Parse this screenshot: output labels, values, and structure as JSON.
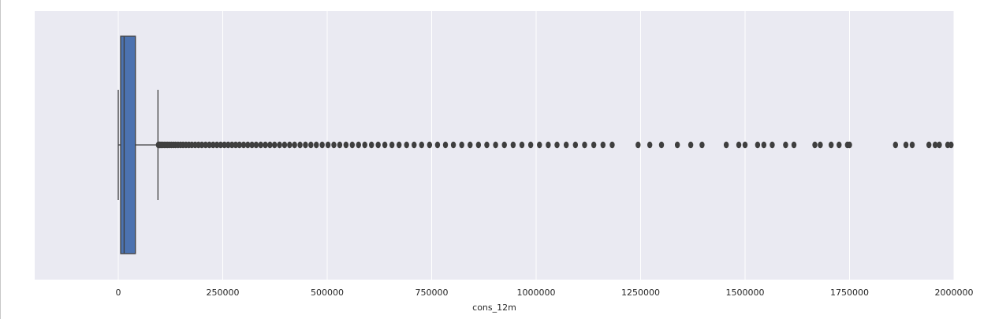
{
  "chart_data": {
    "type": "box",
    "orientation": "horizontal",
    "xlabel": "cons_12m",
    "xlim": [
      -200000,
      2000000
    ],
    "xticks": [
      0,
      250000,
      500000,
      750000,
      1000000,
      1250000,
      1500000,
      1750000,
      2000000
    ],
    "xtick_labels": [
      "0",
      "250000",
      "500000",
      "750000",
      "1000000",
      "1250000",
      "1500000",
      "1750000",
      "2000000"
    ],
    "grid": true,
    "box": {
      "whisker_low": 0,
      "q1": 5700,
      "median": 14000,
      "q3": 41000,
      "whisker_high": 95000
    },
    "outliers": [
      96000,
      98000,
      100000,
      103000,
      106000,
      110000,
      114000,
      118000,
      122000,
      127000,
      132000,
      137000,
      143000,
      149000,
      155000,
      162000,
      169000,
      176000,
      184000,
      192000,
      200000,
      209000,
      218000,
      227000,
      236000,
      245000,
      254000,
      263000,
      272000,
      281000,
      290000,
      300000,
      310000,
      320000,
      330000,
      341000,
      352000,
      363000,
      374000,
      386000,
      398000,
      410000,
      422000,
      435000,
      448000,
      461000,
      474000,
      488000,
      502000,
      516000,
      530000,
      545000,
      560000,
      575000,
      590000,
      606000,
      622000,
      638000,
      655000,
      672000,
      690000,
      708000,
      726000,
      745000,
      764000,
      783000,
      802000,
      822000,
      842000,
      862000,
      882000,
      903000,
      924000,
      945000,
      966000,
      987000,
      1008000,
      1029000,
      1050000,
      1072000,
      1094000,
      1116000,
      1138000,
      1160000,
      1182000,
      1244000,
      1272000,
      1300000,
      1338000,
      1370000,
      1397000,
      1455000,
      1485000,
      1500000,
      1530000,
      1545000,
      1565000,
      1597000,
      1617000,
      1667000,
      1680000,
      1706000,
      1725000,
      1745000,
      1750000,
      1860000,
      1885000,
      1900000,
      1940000,
      1955000,
      1965000,
      1985000,
      1993000
    ],
    "colors": {
      "box_fill": "#4c72b0",
      "line": "#3f3f3f",
      "background": "#eaeaf2",
      "grid": "#ffffff",
      "outlier": "#3f3f3f"
    }
  }
}
